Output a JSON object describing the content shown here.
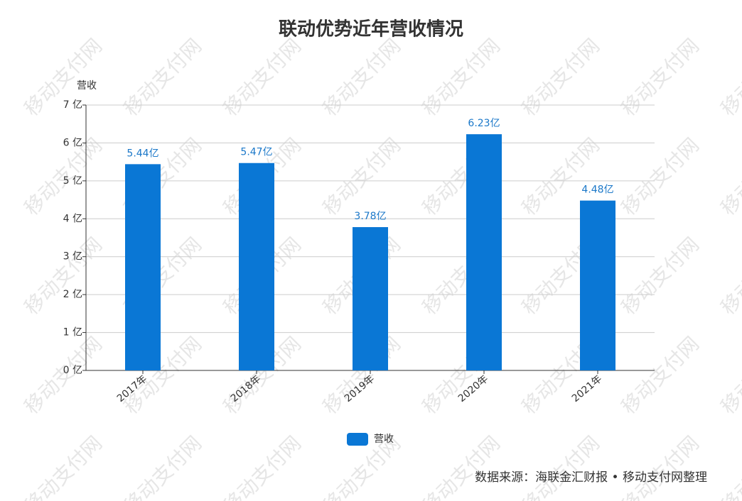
{
  "chart_data": {
    "type": "bar",
    "title": "联动优势近年营收情况",
    "y_label": "营收",
    "categories": [
      "2017年",
      "2018年",
      "2019年",
      "2020年",
      "2021年"
    ],
    "series": [
      {
        "name": "营收",
        "color": "#0a77d5",
        "values": [
          5.44,
          5.47,
          3.78,
          6.23,
          4.48
        ],
        "value_labels": [
          "5.44亿",
          "5.47亿",
          "3.78亿",
          "6.23亿",
          "4.48亿"
        ]
      }
    ],
    "ylim": [
      0,
      7
    ],
    "yticks": [
      {
        "value": 0,
        "label": "0 亿"
      },
      {
        "value": 1,
        "label": "1 亿"
      },
      {
        "value": 2,
        "label": "2 亿"
      },
      {
        "value": 3,
        "label": "3 亿"
      },
      {
        "value": 4,
        "label": "4 亿"
      },
      {
        "value": 5,
        "label": "5 亿"
      },
      {
        "value": 6,
        "label": "6 亿"
      },
      {
        "value": 7,
        "label": "7 亿"
      }
    ],
    "grid": true,
    "legend": "bottom",
    "source": "数据来源：海联金汇财报 • 移动支付网整理",
    "watermark": "移动支付网"
  }
}
